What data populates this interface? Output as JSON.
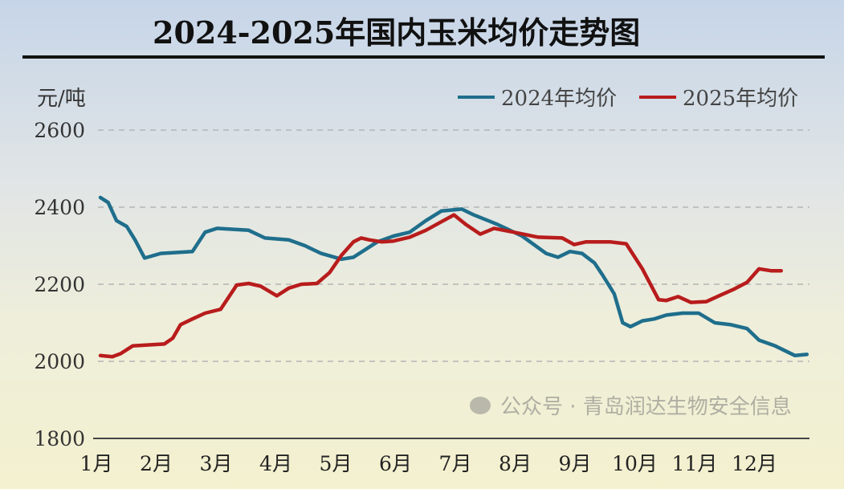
{
  "chart_data": {
    "type": "line",
    "title": "2024-2025年国内玉米均价走势图",
    "ylabel": "元/吨",
    "xlabel": "",
    "ylim": [
      1800,
      2600
    ],
    "yticks": [
      1800,
      2000,
      2200,
      2400,
      2600
    ],
    "xlim": [
      1,
      12.9
    ],
    "categories": [
      "1月",
      "2月",
      "3月",
      "4月",
      "5月",
      "6月",
      "7月",
      "8月",
      "9月",
      "10月",
      "11月",
      "12月"
    ],
    "grid": "horizontal dashed",
    "legend": "top-right",
    "series": [
      {
        "name": "2024年均价",
        "color": "#1f6e8c",
        "points": [
          [
            1.04,
            2425
          ],
          [
            1.17,
            2412
          ],
          [
            1.31,
            2365
          ],
          [
            1.48,
            2350
          ],
          [
            1.62,
            2315
          ],
          [
            1.78,
            2268
          ],
          [
            2.05,
            2280
          ],
          [
            2.58,
            2285
          ],
          [
            2.79,
            2335
          ],
          [
            2.99,
            2345
          ],
          [
            3.52,
            2340
          ],
          [
            3.79,
            2320
          ],
          [
            4.19,
            2315
          ],
          [
            4.46,
            2300
          ],
          [
            4.73,
            2280
          ],
          [
            5.07,
            2265
          ],
          [
            5.27,
            2270
          ],
          [
            5.67,
            2310
          ],
          [
            5.94,
            2325
          ],
          [
            6.21,
            2335
          ],
          [
            6.48,
            2365
          ],
          [
            6.74,
            2390
          ],
          [
            7.08,
            2395
          ],
          [
            7.28,
            2380
          ],
          [
            7.68,
            2355
          ],
          [
            8.09,
            2325
          ],
          [
            8.49,
            2280
          ],
          [
            8.69,
            2270
          ],
          [
            8.89,
            2285
          ],
          [
            9.09,
            2280
          ],
          [
            9.3,
            2255
          ],
          [
            9.43,
            2225
          ],
          [
            9.63,
            2175
          ],
          [
            9.77,
            2100
          ],
          [
            9.9,
            2090
          ],
          [
            10.1,
            2105
          ],
          [
            10.3,
            2110
          ],
          [
            10.5,
            2120
          ],
          [
            10.77,
            2125
          ],
          [
            11.04,
            2125
          ],
          [
            11.31,
            2100
          ],
          [
            11.58,
            2095
          ],
          [
            11.85,
            2085
          ],
          [
            12.05,
            2055
          ],
          [
            12.32,
            2040
          ],
          [
            12.65,
            2015
          ],
          [
            12.85,
            2018
          ]
        ]
      },
      {
        "name": "2025年均价",
        "color": "#b81c1c",
        "points": [
          [
            1.04,
            2015
          ],
          [
            1.24,
            2012
          ],
          [
            1.38,
            2020
          ],
          [
            1.58,
            2040
          ],
          [
            2.11,
            2045
          ],
          [
            2.25,
            2060
          ],
          [
            2.38,
            2095
          ],
          [
            2.58,
            2110
          ],
          [
            2.79,
            2125
          ],
          [
            3.05,
            2135
          ],
          [
            3.32,
            2198
          ],
          [
            3.52,
            2202
          ],
          [
            3.72,
            2195
          ],
          [
            3.99,
            2170
          ],
          [
            4.19,
            2190
          ],
          [
            4.4,
            2200
          ],
          [
            4.66,
            2202
          ],
          [
            4.87,
            2230
          ],
          [
            5.07,
            2275
          ],
          [
            5.27,
            2310
          ],
          [
            5.4,
            2320
          ],
          [
            5.54,
            2315
          ],
          [
            5.74,
            2310
          ],
          [
            5.94,
            2312
          ],
          [
            6.21,
            2322
          ],
          [
            6.48,
            2340
          ],
          [
            6.74,
            2362
          ],
          [
            6.95,
            2380
          ],
          [
            7.15,
            2355
          ],
          [
            7.39,
            2330
          ],
          [
            7.62,
            2345
          ],
          [
            7.95,
            2335
          ],
          [
            8.36,
            2322
          ],
          [
            8.76,
            2320
          ],
          [
            8.96,
            2303
          ],
          [
            9.16,
            2310
          ],
          [
            9.56,
            2310
          ],
          [
            9.83,
            2305
          ],
          [
            10.1,
            2240
          ],
          [
            10.37,
            2160
          ],
          [
            10.5,
            2158
          ],
          [
            10.7,
            2168
          ],
          [
            10.91,
            2153
          ],
          [
            11.17,
            2155
          ],
          [
            11.38,
            2170
          ],
          [
            11.64,
            2188
          ],
          [
            11.85,
            2205
          ],
          [
            12.05,
            2240
          ],
          [
            12.25,
            2235
          ],
          [
            12.42,
            2235
          ]
        ]
      }
    ]
  },
  "watermark": "公众号 · 青岛润达生物安全信息"
}
